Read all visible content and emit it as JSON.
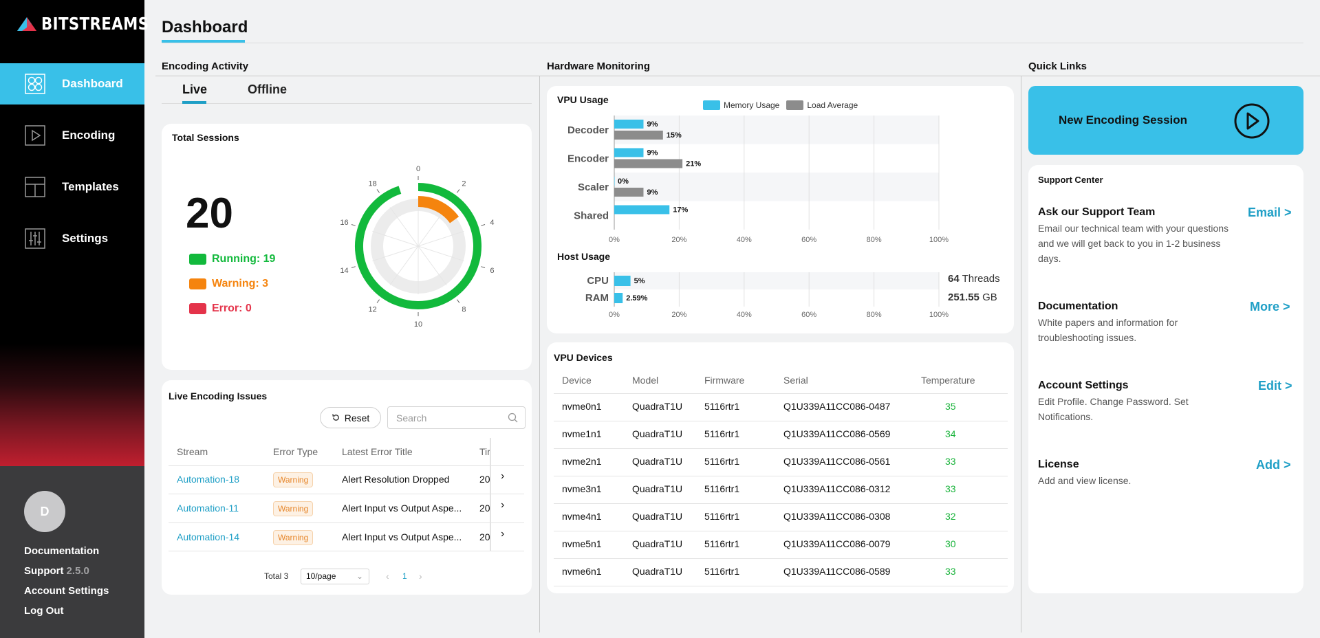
{
  "app": {
    "logo_text": "BITSTREAMS"
  },
  "sidebar": {
    "items": [
      {
        "label": "Dashboard",
        "icon": "dashboard-icon",
        "active": true
      },
      {
        "label": "Encoding",
        "icon": "play-square-icon"
      },
      {
        "label": "Templates",
        "icon": "templates-icon"
      },
      {
        "label": "Settings",
        "icon": "sliders-icon"
      }
    ],
    "avatar_initial": "D",
    "links": {
      "documentation": "Documentation",
      "support": "Support",
      "version": "2.5.0",
      "account_settings": "Account Settings",
      "logout": "Log Out"
    }
  },
  "header": {
    "title": "Dashboard"
  },
  "sections": {
    "encoding_activity": "Encoding Activity",
    "hardware_monitoring": "Hardware Monitoring",
    "quick_links": "Quick Links"
  },
  "tabs": {
    "live": "Live",
    "offline": "Offline"
  },
  "total_sessions": {
    "title": "Total Sessions",
    "total": "20",
    "running_label": "Running: 19",
    "warning_label": "Warning: 3",
    "error_label": "Error: 0",
    "running": 19,
    "warning": 3,
    "error": 0,
    "dial_ticks": [
      "0",
      "2",
      "4",
      "6",
      "8",
      "10",
      "12",
      "14",
      "16",
      "18"
    ],
    "colors": {
      "running": "#12b93c",
      "warning": "#f5840e",
      "error": "#e4334a"
    }
  },
  "issues": {
    "title": "Live Encoding Issues",
    "reset_label": "Reset",
    "search_placeholder": "Search",
    "columns": [
      "Stream",
      "Error Type",
      "Latest Error Title",
      "Tir"
    ],
    "rows": [
      {
        "stream": "Automation-18",
        "type": "Warning",
        "title": "Alert Resolution Dropped",
        "time": "20"
      },
      {
        "stream": "Automation-11",
        "type": "Warning",
        "title": "Alert Input vs Output Aspe...",
        "time": "20"
      },
      {
        "stream": "Automation-14",
        "type": "Warning",
        "title": "Alert Input vs Output Aspe...",
        "time": "20"
      }
    ],
    "total_label": "Total 3",
    "page_size": "10/page",
    "current_page": "1"
  },
  "vpu_usage": {
    "title": "VPU Usage",
    "legend": [
      "Memory Usage",
      "Load Average"
    ],
    "colors": {
      "memory": "#39c0e8",
      "load": "#8c8c8c"
    }
  },
  "host_usage": {
    "title": "Host Usage",
    "threads_value": "64",
    "threads_label": "Threads",
    "ram_value": "251.55",
    "ram_label": "GB"
  },
  "chart_data": [
    {
      "type": "bar",
      "orientation": "horizontal",
      "title": "VPU Usage",
      "categories": [
        "Decoder",
        "Encoder",
        "Scaler",
        "Shared"
      ],
      "series": [
        {
          "name": "Memory Usage",
          "values": [
            9,
            9,
            0,
            17
          ],
          "labels": [
            "9%",
            "9%",
            "0%",
            "17%"
          ]
        },
        {
          "name": "Load Average",
          "values": [
            15,
            21,
            9,
            null
          ],
          "labels": [
            "15%",
            "21%",
            "9%",
            ""
          ]
        }
      ],
      "xlim": [
        0,
        100
      ],
      "ticks": [
        "0%",
        "20%",
        "40%",
        "60%",
        "80%",
        "100%"
      ],
      "legend_position": "top"
    },
    {
      "type": "bar",
      "orientation": "horizontal",
      "title": "Host Usage",
      "categories": [
        "CPU",
        "RAM"
      ],
      "series": [
        {
          "values": [
            5,
            2.59
          ],
          "labels": [
            "5%",
            "2.59%"
          ]
        }
      ],
      "xlim": [
        0,
        100
      ],
      "ticks": [
        "0%",
        "20%",
        "40%",
        "60%",
        "80%",
        "100%"
      ]
    }
  ],
  "devices": {
    "title": "VPU Devices",
    "columns": [
      "Device",
      "Model",
      "Firmware",
      "Serial",
      "Temperature"
    ],
    "rows": [
      [
        "nvme0n1",
        "QuadraT1U",
        "5116rtr1",
        "Q1U339A11CC086-0487",
        "35"
      ],
      [
        "nvme1n1",
        "QuadraT1U",
        "5116rtr1",
        "Q1U339A11CC086-0569",
        "34"
      ],
      [
        "nvme2n1",
        "QuadraT1U",
        "5116rtr1",
        "Q1U339A11CC086-0561",
        "33"
      ],
      [
        "nvme3n1",
        "QuadraT1U",
        "5116rtr1",
        "Q1U339A11CC086-0312",
        "33"
      ],
      [
        "nvme4n1",
        "QuadraT1U",
        "5116rtr1",
        "Q1U339A11CC086-0308",
        "32"
      ],
      [
        "nvme5n1",
        "QuadraT1U",
        "5116rtr1",
        "Q1U339A11CC086-0079",
        "30"
      ],
      [
        "nvme6n1",
        "QuadraT1U",
        "5116rtr1",
        "Q1U339A11CC086-0589",
        "33"
      ]
    ]
  },
  "quick_links": {
    "new_session": "New Encoding Session",
    "support_center": "Support Center",
    "items": [
      {
        "title": "Ask our Support Team",
        "desc": "Email our technical team with your questions and we will get back to you in 1-2 business days.",
        "link": "Email  >"
      },
      {
        "title": "Documentation",
        "desc": "White papers and information for troubleshooting issues.",
        "link": "More  >"
      },
      {
        "title": "Account Settings",
        "desc": "Edit Profile. Change Password. Set Notifications.",
        "link": "Edit  >"
      },
      {
        "title": "License",
        "desc": "Add and view license.",
        "link": "Add  >"
      }
    ]
  }
}
